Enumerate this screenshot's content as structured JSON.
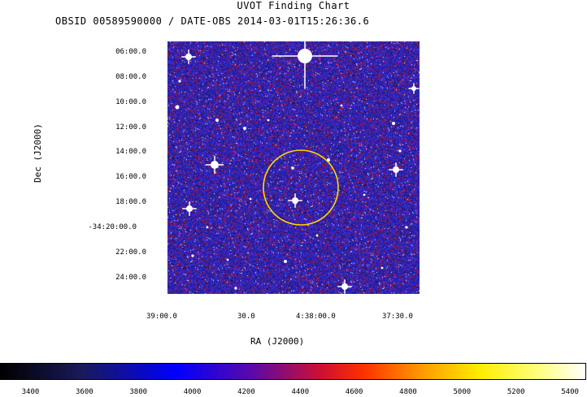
{
  "header": {
    "title": "UVOT Finding Chart",
    "subtitle": "OBSID 00589590000 / DATE-OBS 2014-03-01T15:26:36.6"
  },
  "axes": {
    "ylabel": "Dec  (J2000)",
    "xlabel": "RA  (J2000)",
    "dec_ticks": [
      "06:00.0",
      "08:00.0",
      "10:00.0",
      "12:00.0",
      "14:00.0",
      "16:00.0",
      "18:00.0",
      "-34:20:00.0",
      "22:00.0",
      "24:00.0"
    ],
    "ra_ticks": [
      "39:00.0",
      "30.0",
      "4:38:00.0",
      "37:30.0"
    ]
  },
  "colorbar": {
    "ticks": [
      "3400",
      "3600",
      "3800",
      "4000",
      "4200",
      "4400",
      "4600",
      "4800",
      "5000",
      "5200",
      "5400"
    ],
    "range": [
      3290,
      5460
    ]
  },
  "colors": {
    "background_noise": "#2b2bd0",
    "hot_noise": "#d01010",
    "source_circle": "#ffd700",
    "star": "#ffffff"
  }
}
